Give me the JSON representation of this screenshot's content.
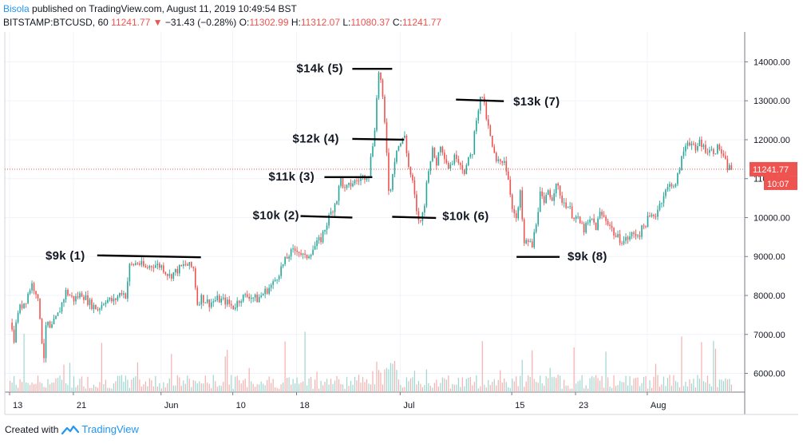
{
  "header": {
    "author": "Bisola",
    "published": " published on TradingView.com, August 11, 2019 10:49:54 BST",
    "symbol": "BITSTAMP:BTCUSD, 60",
    "last": "11241.77",
    "change": "−31.43 (−0.28%)",
    "o_label": "O:",
    "o_value": "11302.99",
    "h_label": "H:",
    "h_value": "11312.07",
    "l_label": "L:",
    "l_value": "11080.37",
    "c_label": "C:",
    "c_value": "11241.77"
  },
  "footer": {
    "created_with": "Created with",
    "brand": "TradingView"
  },
  "colors": {
    "up": "#26a69a",
    "down": "#ef5350",
    "last_price_line": "#ef5350",
    "brand": "#2196f3"
  },
  "chart_data": {
    "type": "candlestick",
    "title": "",
    "ylim": [
      5500,
      14600
    ],
    "yticks": [
      6000,
      7000,
      8000,
      9000,
      10000,
      11000,
      12000,
      13000,
      14000
    ],
    "ytick_labels": [
      "6000.00",
      "7000.00",
      "8000.00",
      "9000.00",
      "10000.00",
      "11000.00",
      "12000.00",
      "13000.00",
      "14000.00"
    ],
    "xticks": [
      {
        "day": 0,
        "label": "13"
      },
      {
        "day": 8,
        "label": "21"
      },
      {
        "day": 19,
        "label": "Jun"
      },
      {
        "day": 28,
        "label": "10"
      },
      {
        "day": 36,
        "label": "18"
      },
      {
        "day": 49,
        "label": "Jul"
      },
      {
        "day": 63,
        "label": "15"
      },
      {
        "day": 71,
        "label": "23"
      },
      {
        "day": 80,
        "label": "Aug"
      }
    ],
    "x_day_range": [
      0,
      91
    ],
    "last_price": 11241.77,
    "last_price_label": "11241.77",
    "countdown_label": "10:07",
    "price_path": [
      [
        0,
        7300
      ],
      [
        0.5,
        6900
      ],
      [
        1,
        7600
      ],
      [
        2,
        7900
      ],
      [
        2.7,
        8300
      ],
      [
        3.3,
        8100
      ],
      [
        3.8,
        7400
      ],
      [
        4.2,
        6300
      ],
      [
        4.6,
        7400
      ],
      [
        5,
        7100
      ],
      [
        5.5,
        7300
      ],
      [
        6,
        7500
      ],
      [
        7,
        8100
      ],
      [
        8,
        7900
      ],
      [
        9,
        8050
      ],
      [
        10,
        7800
      ],
      [
        11,
        7650
      ],
      [
        12,
        7900
      ],
      [
        13,
        7850
      ],
      [
        14,
        8100
      ],
      [
        14.5,
        8000
      ],
      [
        15,
        8750
      ],
      [
        16,
        8850
      ],
      [
        17,
        8700
      ],
      [
        18,
        8800
      ],
      [
        19,
        8750
      ],
      [
        20,
        8500
      ],
      [
        21,
        8650
      ],
      [
        22,
        8800
      ],
      [
        23,
        8700
      ],
      [
        23.5,
        7800
      ],
      [
        24,
        7950
      ],
      [
        25,
        7800
      ],
      [
        26,
        7900
      ],
      [
        27,
        7850
      ],
      [
        28,
        7700
      ],
      [
        29,
        7950
      ],
      [
        30,
        8000
      ],
      [
        31,
        7900
      ],
      [
        32,
        8100
      ],
      [
        33,
        8300
      ],
      [
        34,
        8700
      ],
      [
        35,
        9050
      ],
      [
        36,
        9200
      ],
      [
        37,
        8950
      ],
      [
        38,
        9200
      ],
      [
        39,
        9450
      ],
      [
        40,
        10000
      ],
      [
        41,
        10500
      ],
      [
        41.5,
        11000
      ],
      [
        42,
        10700
      ],
      [
        43,
        10900
      ],
      [
        44,
        11000
      ],
      [
        45,
        11150
      ],
      [
        45.7,
        12200
      ],
      [
        46.3,
        13900
      ],
      [
        46.8,
        12900
      ],
      [
        47.2,
        11900
      ],
      [
        47.6,
        10400
      ],
      [
        48,
        11200
      ],
      [
        48.5,
        11800
      ],
      [
        49,
        11900
      ],
      [
        49.5,
        12100
      ],
      [
        50,
        11300
      ],
      [
        50.6,
        10800
      ],
      [
        51,
        10100
      ],
      [
        51.5,
        9850
      ],
      [
        52,
        10400
      ],
      [
        52.5,
        11300
      ],
      [
        53,
        11700
      ],
      [
        53.5,
        11400
      ],
      [
        54,
        11900
      ],
      [
        55,
        11300
      ],
      [
        56,
        11600
      ],
      [
        57,
        11200
      ],
      [
        58,
        11700
      ],
      [
        58.5,
        12600
      ],
      [
        59.2,
        13200
      ],
      [
        59.8,
        12500
      ],
      [
        60.5,
        11800
      ],
      [
        61,
        11400
      ],
      [
        62,
        11500
      ],
      [
        62.5,
        11000
      ],
      [
        63,
        10300
      ],
      [
        63.5,
        9900
      ],
      [
        64,
        10600
      ],
      [
        64.5,
        9300
      ],
      [
        65,
        9400
      ],
      [
        65.5,
        9250
      ],
      [
        66,
        9900
      ],
      [
        66.5,
        10600
      ],
      [
        67,
        10300
      ],
      [
        67.5,
        10700
      ],
      [
        68,
        10500
      ],
      [
        68.5,
        10950
      ],
      [
        69,
        10500
      ],
      [
        70,
        10300
      ],
      [
        70.5,
        10100
      ],
      [
        71,
        10000
      ],
      [
        72,
        9700
      ],
      [
        73,
        9950
      ],
      [
        73.5,
        9750
      ],
      [
        74,
        10100
      ],
      [
        75,
        9900
      ],
      [
        76,
        9500
      ],
      [
        77,
        9400
      ],
      [
        78,
        9550
      ],
      [
        79,
        9600
      ],
      [
        80,
        9950
      ],
      [
        81,
        10100
      ],
      [
        82,
        10600
      ],
      [
        83,
        10900
      ],
      [
        83.5,
        10800
      ],
      [
        84,
        11300
      ],
      [
        84.5,
        11700
      ],
      [
        85,
        12000
      ],
      [
        85.5,
        11900
      ],
      [
        86,
        11650
      ],
      [
        86.5,
        12000
      ],
      [
        87,
        11800
      ],
      [
        88,
        11700
      ],
      [
        89,
        11800
      ],
      [
        89.5,
        11500
      ],
      [
        90,
        11300
      ],
      [
        90.7,
        11242
      ]
    ],
    "annotations": [
      {
        "label": "$9k (1)",
        "level": 9000,
        "line_day_start": 11,
        "line_day_end": 24,
        "line_price_start": 9030,
        "line_price_end": 8980,
        "text_day": 4.5,
        "text_price": 9030
      },
      {
        "label": "$10k (2)",
        "level": 10000,
        "line_day_start": 36.5,
        "line_day_end": 43,
        "line_price_start": 10040,
        "line_price_end": 10000,
        "text_day": 30.5,
        "text_price": 10060
      },
      {
        "label": "$11k (3)",
        "level": 11000,
        "line_day_start": 39.5,
        "line_day_end": 45.5,
        "line_price_start": 11040,
        "line_price_end": 11040,
        "text_day": 32.5,
        "text_price": 11060
      },
      {
        "label": "$12k (4)",
        "level": 12000,
        "line_day_start": 43,
        "line_day_end": 49.5,
        "line_price_start": 12020,
        "line_price_end": 12000,
        "text_day": 35.5,
        "text_price": 12030
      },
      {
        "label": "$14k (5)",
        "level": 14000,
        "line_day_start": 43,
        "line_day_end": 48,
        "line_price_start": 13820,
        "line_price_end": 13820,
        "text_day": 36,
        "text_price": 13830
      },
      {
        "label": "$10k (6)",
        "level": 10000,
        "line_day_start": 48,
        "line_day_end": 53.5,
        "line_price_start": 10020,
        "line_price_end": 9990,
        "text_day": 54.3,
        "text_price": 10040
      },
      {
        "label": "$13k (7)",
        "level": 13000,
        "line_day_start": 56,
        "line_day_end": 62,
        "line_price_start": 13030,
        "line_price_end": 12990,
        "text_day": 63.2,
        "text_price": 12980
      },
      {
        "label": "$9k (8)",
        "level": 9000,
        "line_day_start": 63.6,
        "line_day_end": 69,
        "line_price_start": 8990,
        "line_price_end": 8990,
        "text_day": 70,
        "text_price": 9000
      }
    ]
  }
}
